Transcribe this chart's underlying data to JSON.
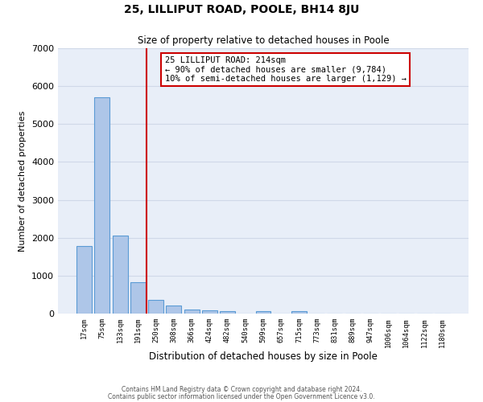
{
  "title": "25, LILLIPUT ROAD, POOLE, BH14 8JU",
  "subtitle": "Size of property relative to detached houses in Poole",
  "xlabel": "Distribution of detached houses by size in Poole",
  "ylabel": "Number of detached properties",
  "bar_labels": [
    "17sqm",
    "75sqm",
    "133sqm",
    "191sqm",
    "250sqm",
    "308sqm",
    "366sqm",
    "424sqm",
    "482sqm",
    "540sqm",
    "599sqm",
    "657sqm",
    "715sqm",
    "773sqm",
    "831sqm",
    "889sqm",
    "947sqm",
    "1006sqm",
    "1064sqm",
    "1122sqm",
    "1180sqm"
  ],
  "bar_values": [
    1780,
    5700,
    2050,
    830,
    370,
    210,
    115,
    75,
    55,
    0,
    55,
    0,
    55,
    0,
    0,
    0,
    0,
    0,
    0,
    0,
    0
  ],
  "bar_color": "#aec6e8",
  "bar_edge_color": "#5b9bd5",
  "vline_x": 3.5,
  "vline_color": "#cc0000",
  "annotation_title": "25 LILLIPUT ROAD: 214sqm",
  "annotation_line1": "← 90% of detached houses are smaller (9,784)",
  "annotation_line2": "10% of semi-detached houses are larger (1,129) →",
  "annotation_box_color": "#cc0000",
  "ylim": [
    0,
    7000
  ],
  "yticks": [
    0,
    1000,
    2000,
    3000,
    4000,
    5000,
    6000,
    7000
  ],
  "grid_color": "#d0d8e8",
  "bg_color": "#e8eef8",
  "footer_line1": "Contains HM Land Registry data © Crown copyright and database right 2024.",
  "footer_line2": "Contains public sector information licensed under the Open Government Licence v3.0."
}
